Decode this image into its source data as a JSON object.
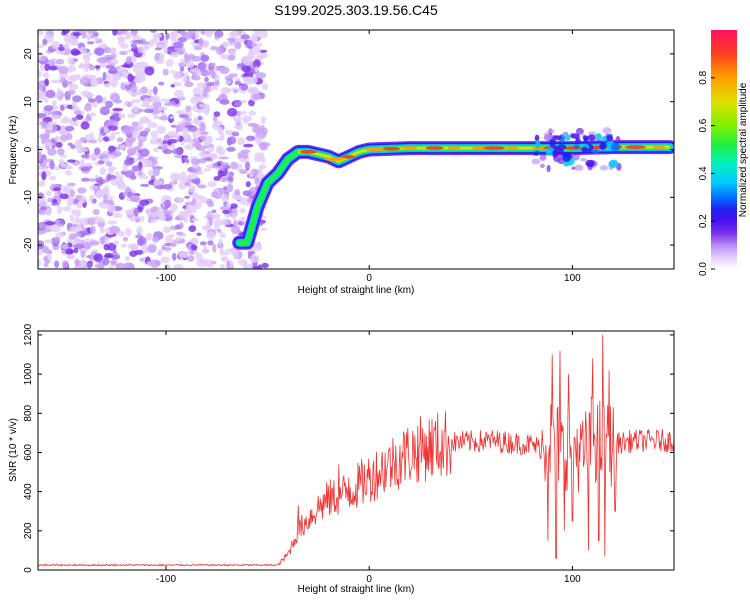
{
  "figure": {
    "title": "S199.2025.303.19.56.C45"
  },
  "colormap": [
    "#ffffff",
    "#e2cdfa",
    "#c6a0f6",
    "#a070f0",
    "#7a30ea",
    "#4a10f0",
    "#1f1ff0",
    "#0070ff",
    "#00c8ff",
    "#00f0c0",
    "#20f040",
    "#80f000",
    "#e0e000",
    "#ffa000",
    "#ff4020",
    "#ff1060"
  ],
  "chart_data": [
    {
      "type": "heatmap",
      "name": "spectrogram",
      "xlabel": "Height of straight line (km)",
      "ylabel": "Frequency (Hz)",
      "xlim": [
        -163,
        150
      ],
      "ylim": [
        -25,
        25
      ],
      "xticks": [
        -100,
        0,
        100
      ],
      "xtick_labels": [
        "-100",
        "0",
        "100"
      ],
      "yticks": [
        -20,
        -10,
        0,
        10,
        20
      ],
      "ytick_labels": [
        "-20",
        "-10",
        "0",
        "10",
        "20"
      ],
      "ridge": {
        "x": [
          -64,
          -60,
          -55,
          -50,
          -45,
          -40,
          -35,
          -30,
          -25,
          -20,
          -15,
          -10,
          -5,
          0,
          20,
          40,
          60,
          80,
          100,
          120,
          148
        ],
        "y": [
          -19.5,
          -19.5,
          -12,
          -7,
          -5,
          -2,
          -0.5,
          -0.5,
          -1,
          -1.5,
          -2.5,
          -1.5,
          -0.5,
          0,
          0.3,
          0.3,
          0.3,
          0.3,
          0.3,
          0.5,
          0.5
        ]
      },
      "noise_region_x": [
        -163,
        -55
      ],
      "colorbar": {
        "label": "Normalized spectral amplitude",
        "range": [
          0,
          1
        ],
        "ticks": [
          0.0,
          0.2,
          0.4,
          0.6,
          0.8
        ],
        "tick_labels": [
          "0.0",
          "0.2",
          "0.4",
          "0.6",
          "0.8"
        ]
      }
    },
    {
      "type": "line",
      "name": "snr",
      "xlabel": "Height of straight line (km)",
      "ylabel": "SNR (10 * v/v)",
      "xlim": [
        -163,
        150
      ],
      "ylim": [
        0,
        1220
      ],
      "xticks": [
        -100,
        0,
        100
      ],
      "xtick_labels": [
        "-100",
        "0",
        "100"
      ],
      "yticks": [
        0,
        200,
        400,
        600,
        800,
        1000,
        1200
      ],
      "ytick_labels": [
        "0",
        "200",
        "400",
        "600",
        "800",
        "1000",
        "1200"
      ],
      "color": "#ee3333",
      "envelope": {
        "x": [
          -163,
          -45,
          -40,
          -35,
          -30,
          -25,
          -20,
          -10,
          0,
          10,
          20,
          30,
          40,
          60,
          70,
          80,
          85,
          90,
          95,
          100,
          105,
          110,
          115,
          120,
          125,
          130,
          150
        ],
        "y": [
          25,
          25,
          80,
          200,
          260,
          320,
          360,
          400,
          470,
          540,
          600,
          630,
          650,
          660,
          650,
          640,
          620,
          700,
          600,
          650,
          580,
          680,
          640,
          650,
          650,
          660,
          660
        ]
      },
      "spikes": [
        {
          "x": -35,
          "y": 330
        },
        {
          "x": -15,
          "y": 540
        },
        {
          "x": -10,
          "y": 470
        },
        {
          "x": 88,
          "y": 150
        },
        {
          "x": 90,
          "y": 1100
        },
        {
          "x": 92,
          "y": 60
        },
        {
          "x": 94,
          "y": 1120
        },
        {
          "x": 96,
          "y": 200
        },
        {
          "x": 98,
          "y": 1000
        },
        {
          "x": 100,
          "y": 250
        },
        {
          "x": 108,
          "y": 100
        },
        {
          "x": 110,
          "y": 1080
        },
        {
          "x": 113,
          "y": 150
        },
        {
          "x": 115,
          "y": 1200
        },
        {
          "x": 116,
          "y": 70
        },
        {
          "x": 118,
          "y": 1020
        },
        {
          "x": 121,
          "y": 300
        }
      ]
    }
  ]
}
